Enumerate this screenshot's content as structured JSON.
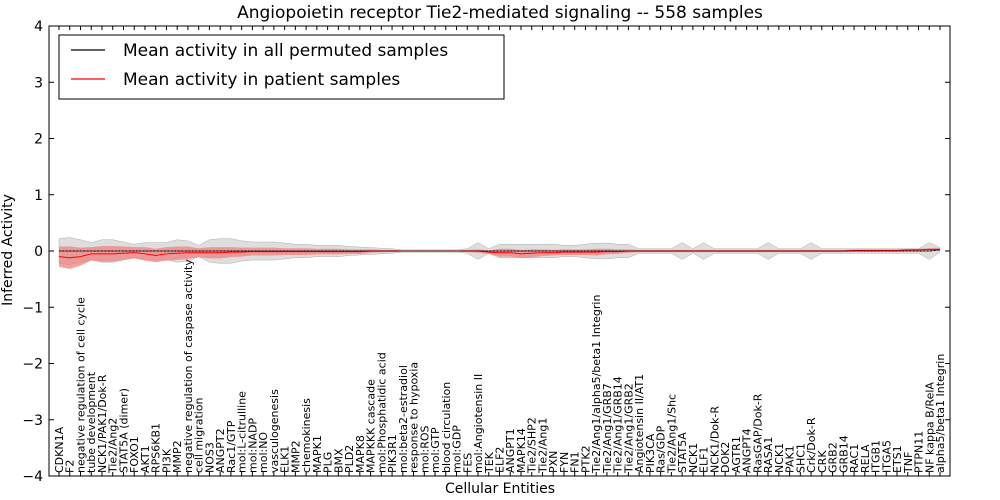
{
  "chart_data": {
    "type": "line",
    "title": "Angiopoietin receptor Tie2-mediated signaling -- 558 samples",
    "xlabel": "Cellular Entities",
    "ylabel": "Inferred Activity",
    "ylim": [
      -4,
      4
    ],
    "yticks": [
      "−4",
      "−3",
      "−2",
      "−1",
      "0",
      "1",
      "2",
      "3",
      "4"
    ],
    "legend_position": "top-left",
    "colors": {
      "permuted": "#000000",
      "patient": "#ff0000",
      "patient_band": "#f08080",
      "permuted_band": "#c8c8c8"
    },
    "categories": [
      "CDKN1A",
      "F2",
      "negative regulation of cell cycle",
      "tube development",
      "NCK1/PAK1/Dok-R",
      "Tie2/Ang2",
      "STAT5A (dimer)",
      "FOXO1",
      "AKT1",
      "RPS6KB1",
      "PI3K",
      "MMP2",
      "negative regulation of caspase activity",
      "cell migration",
      "NOS3",
      "ANGPT2",
      "Rac1/GTP",
      "mol:L-citrulline",
      "mol:NADP",
      "mol:NO",
      "vasculogenesis",
      "ELK1",
      "MMP2",
      "chemokinesis",
      "MAPK1",
      "PLG",
      "BMX",
      "PLD2",
      "MAPK8",
      "MAPKKK cascade",
      "mol:Phosphatidic acid",
      "PIK3R1",
      "mol:beta2-estradiol",
      "response to hypoxia",
      "mol:ROS",
      "mol:GTP",
      "blood circulation",
      "mol:GDP",
      "FES",
      "mol:Angiotensin II",
      "TEK",
      "ELF2",
      "ANGPT1",
      "MAPK14",
      "Tie2/SHP2",
      "Tie2/Ang1",
      "PXN",
      "FYN",
      "FN1",
      "PTK2",
      "Tie2/Ang1/alpha5/beta1 Integrin",
      "Tie2/Ang1/GRB7",
      "Tie2/Ang1/GRB14",
      "Tie2/Ang1/GRB2",
      "Angiotensin II/AT1",
      "PIK3CA",
      "Ras/GDP",
      "Tie2/Ang1/Shc",
      "STAT5A",
      "NCK1",
      "ELF1",
      "NCK1/Dok-R",
      "DOK2",
      "AGTR1",
      "ANGPT4",
      "RasGAP/Dok-R",
      "RASA1",
      "NCK1",
      "PAK1",
      "SHC1",
      "Crk/Dok-R",
      "CRK",
      "GRB2",
      "GRB14",
      "RAC1",
      "RELA",
      "ITGB1",
      "ITGA5",
      "ETS1",
      "TNF",
      "PTPN11",
      "NF kappa B/RelA",
      "alpha5/beta1 Integrin"
    ],
    "series": [
      {
        "name": "Mean activity in all permuted samples",
        "values": [
          0,
          0,
          0,
          0,
          0,
          0,
          0,
          0,
          0,
          0,
          0,
          0,
          0,
          0,
          0,
          0,
          0,
          0,
          0,
          0,
          0,
          0,
          0,
          0,
          0,
          0,
          0,
          0,
          0,
          0,
          0,
          0,
          0,
          0,
          0,
          0,
          0,
          0,
          0,
          0,
          0,
          0,
          0,
          0,
          0,
          0,
          0,
          0,
          0,
          0,
          0,
          0,
          0,
          0,
          0,
          0,
          0,
          0,
          0,
          0,
          0,
          0,
          0,
          0,
          0,
          0,
          0,
          0,
          0,
          0,
          0,
          0,
          0,
          0,
          0,
          0,
          0,
          0,
          0,
          0,
          0,
          0,
          0.02
        ],
        "band": [
          0.22,
          0.24,
          0.2,
          0.15,
          0.2,
          0.2,
          0.16,
          0.12,
          0.15,
          0.15,
          0.15,
          0.2,
          0.18,
          0.1,
          0.2,
          0.22,
          0.22,
          0.18,
          0.16,
          0.16,
          0.16,
          0.14,
          0.12,
          0.12,
          0.1,
          0.1,
          0.1,
          0.08,
          0.07,
          0.06,
          0.05,
          0.04,
          0.02,
          0.02,
          0.02,
          0.02,
          0.02,
          0.02,
          0.04,
          0.15,
          0.04,
          0.12,
          0.12,
          0.12,
          0.12,
          0.12,
          0.12,
          0.1,
          0.1,
          0.12,
          0.14,
          0.14,
          0.12,
          0.12,
          0.04,
          0.04,
          0.04,
          0.04,
          0.15,
          0.04,
          0.15,
          0.04,
          0.04,
          0.04,
          0.04,
          0.04,
          0.15,
          0.04,
          0.04,
          0.04,
          0.15,
          0.04,
          0.04,
          0.04,
          0.04,
          0.04,
          0.04,
          0.04,
          0.04,
          0.04,
          0.04,
          0.15,
          0.04
        ]
      },
      {
        "name": "Mean activity in patient samples",
        "values": [
          -0.1,
          -0.12,
          -0.1,
          -0.05,
          -0.05,
          -0.05,
          -0.04,
          -0.03,
          -0.05,
          -0.08,
          -0.05,
          -0.04,
          -0.03,
          -0.03,
          -0.03,
          -0.03,
          -0.02,
          -0.02,
          -0.01,
          -0.01,
          -0.01,
          -0.01,
          -0.01,
          -0.01,
          -0.01,
          -0.01,
          -0.01,
          -0.01,
          -0.01,
          0,
          0,
          0,
          0,
          0,
          0,
          0,
          0,
          0,
          0,
          0,
          -0.02,
          -0.03,
          -0.03,
          -0.05,
          -0.04,
          -0.03,
          -0.03,
          -0.02,
          -0.02,
          -0.02,
          -0.02,
          -0.01,
          -0.01,
          0,
          0,
          0,
          0,
          0,
          0,
          0,
          0,
          0,
          0,
          0,
          0,
          0,
          0,
          0,
          0,
          0,
          0,
          0,
          0,
          0,
          0.01,
          0.01,
          0.01,
          0.01,
          0.01,
          0.02,
          0.02,
          0.03,
          0.03
        ],
        "band": [
          0.18,
          0.2,
          0.16,
          0.12,
          0.14,
          0.14,
          0.12,
          0.1,
          0.12,
          0.12,
          0.12,
          0.12,
          0.11,
          0.08,
          0.1,
          0.1,
          0.09,
          0.08,
          0.07,
          0.07,
          0.07,
          0.06,
          0.06,
          0.06,
          0.05,
          0.05,
          0.05,
          0.04,
          0.04,
          0.03,
          0.02,
          0.02,
          0.01,
          0.01,
          0.01,
          0.01,
          0.01,
          0.01,
          0.02,
          0.03,
          0.03,
          0.07,
          0.07,
          0.07,
          0.07,
          0.06,
          0.05,
          0.05,
          0.05,
          0.05,
          0.06,
          0.05,
          0.04,
          0.03,
          0.02,
          0.02,
          0.02,
          0.02,
          0.02,
          0.02,
          0.02,
          0.02,
          0.02,
          0.02,
          0.02,
          0.02,
          0.02,
          0.02,
          0.02,
          0.02,
          0.02,
          0.02,
          0.02,
          0.02,
          0.02,
          0.02,
          0.02,
          0.02,
          0.02,
          0.02,
          0.02,
          0.02,
          0.02
        ]
      }
    ]
  }
}
